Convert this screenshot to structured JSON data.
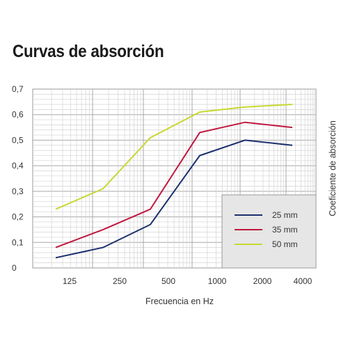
{
  "title": "Curvas de absorción",
  "chart_data": {
    "type": "line",
    "title": "Curvas de absorción",
    "xlabel": "Frecuencia en Hz",
    "ylabel": "Coeficiente de absorción",
    "categories": [
      "125",
      "250",
      "500",
      "1000",
      "2000",
      "4000"
    ],
    "y_ticks": [
      "0",
      "0,1",
      "0,2",
      "0,3",
      "0,4",
      "0,5",
      "0,6",
      "0,7"
    ],
    "ylim": [
      0,
      0.7
    ],
    "grid": true,
    "legend_position": "bottom-right",
    "series": [
      {
        "name": "25 mm",
        "color": "#1b2f6e",
        "values": [
          0.04,
          0.08,
          0.17,
          0.44,
          0.5,
          0.48
        ]
      },
      {
        "name": "35 mm",
        "color": "#c0183f",
        "values": [
          0.08,
          0.15,
          0.23,
          0.53,
          0.57,
          0.55
        ]
      },
      {
        "name": "50 mm",
        "color": "#c8d832",
        "values": [
          0.23,
          0.31,
          0.51,
          0.61,
          0.63,
          0.64
        ]
      }
    ]
  }
}
